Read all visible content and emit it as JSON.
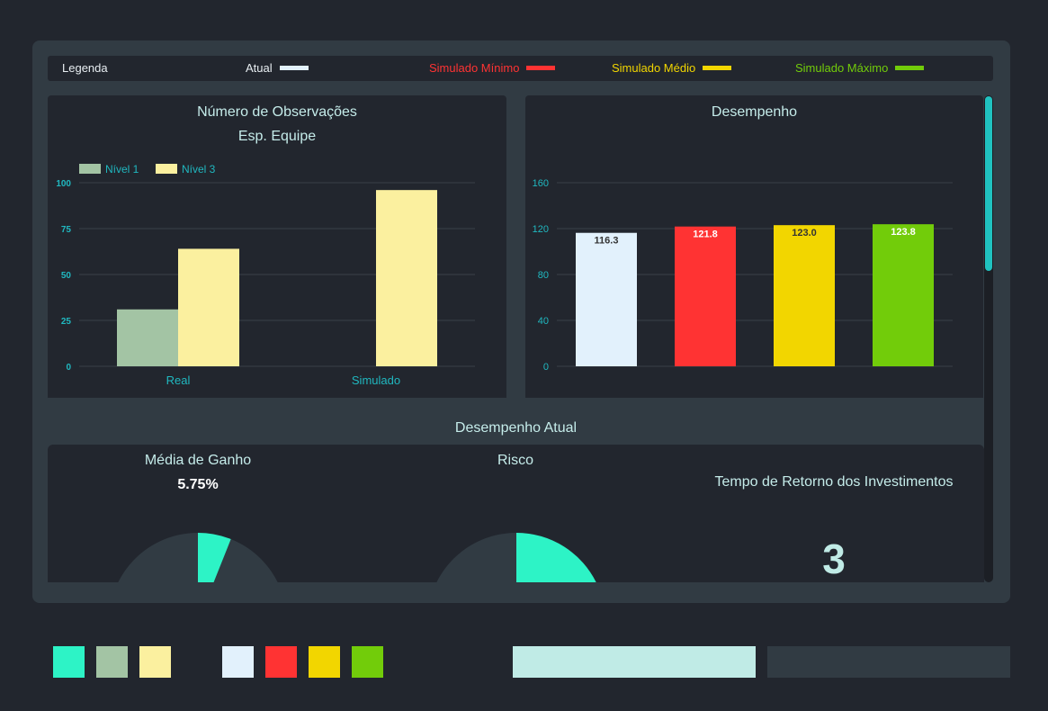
{
  "legend": {
    "label": "Legenda",
    "items": [
      {
        "label": "Atual",
        "color": "#e2f1fc"
      },
      {
        "label": "Simulado Mínimo",
        "color": "#ff3333"
      },
      {
        "label": "Simulado Médio",
        "color": "#f2d600"
      },
      {
        "label": "Simulado Máximo",
        "color": "#72cc0a"
      }
    ]
  },
  "observations": {
    "title": "Número de Observações",
    "subtitle": "Esp. Equipe"
  },
  "performance": {
    "title": "Desempenho"
  },
  "current_section": {
    "title": "Desempenho Atual",
    "gain": {
      "title": "Média de Ganho",
      "value": "5.75%",
      "gauge_fraction": 0.0575
    },
    "risk": {
      "title": "Risco",
      "gauge_fraction": 0.36
    },
    "payback": {
      "title": "Tempo de Retorno dos Investimentos",
      "value": "3"
    }
  },
  "palette": {
    "swatches": [
      "#2df3c6",
      "#a3c4a4",
      "#fbf09f",
      "#e2f1fc",
      "#ff3333",
      "#f2d600",
      "#72cc0a"
    ],
    "bars": [
      "#c0ebe6",
      "#313b43"
    ]
  },
  "chart_data": [
    {
      "type": "bar",
      "title": "Número de Observações",
      "subtitle": "Esp. Equipe",
      "categories": [
        "Real",
        "Simulado"
      ],
      "series": [
        {
          "name": "Nível 1",
          "color": "#a3c4a4",
          "values": [
            31,
            0
          ]
        },
        {
          "name": "Nível 3",
          "color": "#fbf09f",
          "values": [
            64,
            96
          ]
        }
      ],
      "ylim": [
        0,
        100
      ],
      "yticks": [
        0,
        25,
        50,
        75,
        100
      ],
      "legend": "top-left",
      "grid": true
    },
    {
      "type": "bar",
      "title": "Desempenho",
      "categories": [
        "Atual",
        "Simulado Mínimo",
        "Simulado Médio",
        "Simulado Máximo"
      ],
      "values": [
        116.3,
        121.8,
        123.0,
        123.8
      ],
      "labels": [
        "116.3",
        "121.8",
        "123.0",
        "123.8"
      ],
      "colors": [
        "#e2f1fc",
        "#ff3333",
        "#f2d600",
        "#72cc0a"
      ],
      "ylim": [
        0,
        160
      ],
      "yticks": [
        0,
        40,
        80,
        120,
        160
      ],
      "grid": true
    }
  ]
}
